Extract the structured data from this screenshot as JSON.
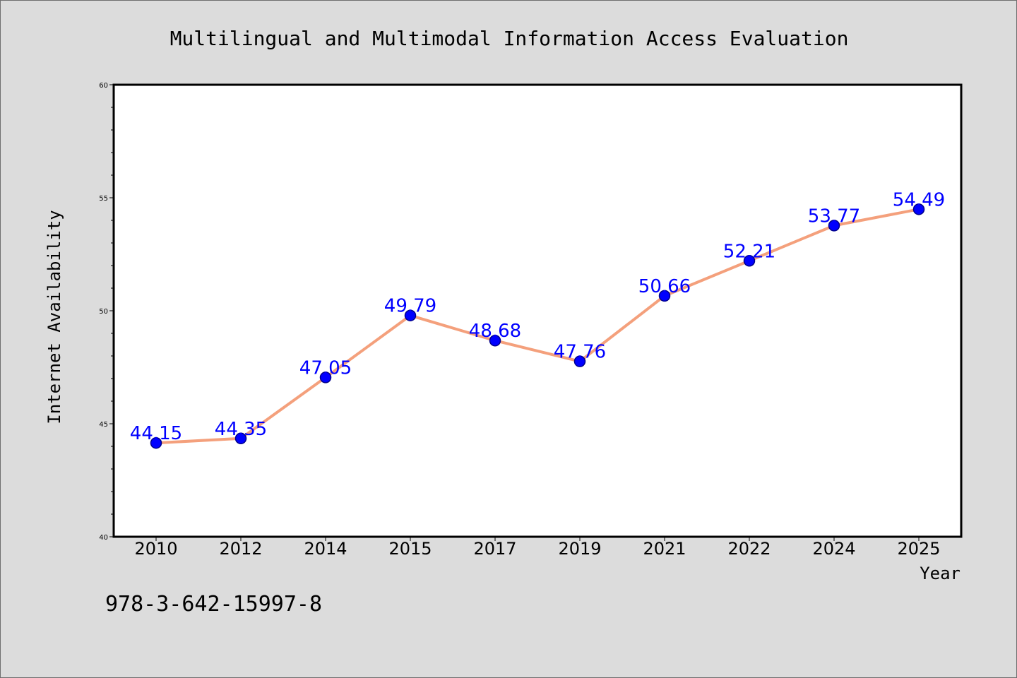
{
  "chart_data": {
    "type": "line",
    "title": "Multilingual and Multimodal Information Access Evaluation",
    "xlabel": "Year",
    "ylabel": "Internet Availability",
    "categories": [
      "2010",
      "2012",
      "2014",
      "2015",
      "2017",
      "2019",
      "2021",
      "2022",
      "2024",
      "2025"
    ],
    "values": [
      44.15,
      44.35,
      47.05,
      49.79,
      48.68,
      47.76,
      50.66,
      52.21,
      53.77,
      54.49
    ],
    "data_labels": [
      "44.15",
      "44.35",
      "47.05",
      "49.79",
      "48.68",
      "47.76",
      "50.66",
      "52.21",
      "53.77",
      "54.49"
    ],
    "ylim": [
      40,
      60
    ],
    "yticks": [
      40,
      45,
      50,
      55,
      60
    ],
    "grid": false,
    "legend": "none",
    "colors": {
      "line": "#f4a07c",
      "marker": "#0000ff",
      "marker_edge": "#00008b",
      "data_label": "#0000ff",
      "plot_background": "#ffffff",
      "figure_background": "#dcdcdc"
    }
  },
  "annotation": "978-3-642-15997-8"
}
